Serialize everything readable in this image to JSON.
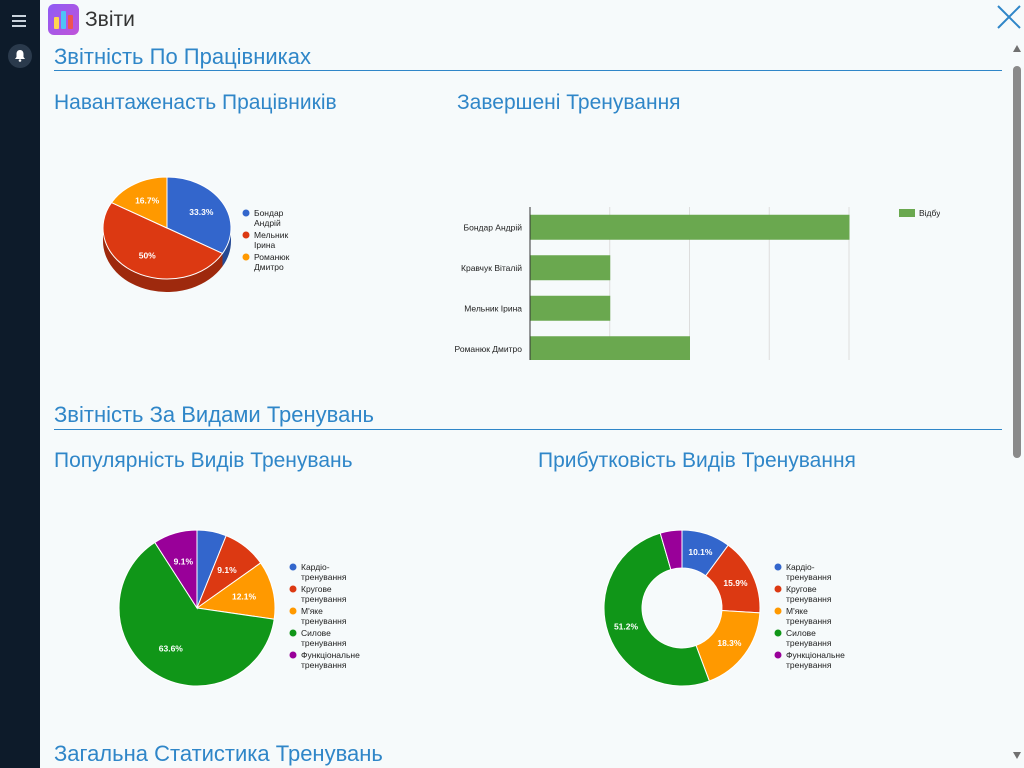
{
  "app": {
    "title": "Звіти"
  },
  "sections": {
    "employees": "Звітність По Працівниках",
    "training_types": "Звітність За Видами Тренувань",
    "general": "Загальна Статистика Тренувань"
  },
  "colors": {
    "blue": "#3366cc",
    "red": "#dc3912",
    "orange": "#ff9900",
    "green": "#109618",
    "purple": "#990099",
    "bar": "#6aa84f",
    "accent": "#2f86c8"
  },
  "chart_data": [
    {
      "id": "workload",
      "type": "pie",
      "title": "Навантаженасть Працівників",
      "labels": [
        "Бондар Андрій",
        "Мельник Ірина",
        "Романюк Дмитро"
      ],
      "values": [
        33.3,
        50,
        16.7
      ],
      "value_labels": [
        "33.3%",
        "50%",
        "16.7%"
      ],
      "colors": [
        "#3366cc",
        "#dc3912",
        "#ff9900"
      ],
      "is3D": true,
      "legend": "right"
    },
    {
      "id": "completed",
      "type": "bar",
      "orientation": "horizontal",
      "title": "Завершені Тренування",
      "categories": [
        "Бондар Андрій",
        "Кравчук Віталій",
        "Мельник Ірина",
        "Романюк Дмитро"
      ],
      "series": [
        {
          "name": "Відбувся",
          "values": [
            4,
            1,
            1,
            2
          ]
        }
      ],
      "xticks": [
        "0",
        "1",
        "2",
        "3",
        "4"
      ],
      "xlim": [
        0,
        4
      ],
      "legend": "top-right",
      "grid": true
    },
    {
      "id": "popularity",
      "type": "pie",
      "title": "Популярність Видів Тренувань",
      "labels": [
        "Кардіо-тренування",
        "Кругове тренування",
        "М'яке тренування",
        "Силове тренування",
        "Функціональне тренування"
      ],
      "values": [
        6.1,
        9.1,
        12.1,
        63.6,
        9.1
      ],
      "value_labels": [
        "",
        "9.1%",
        "12.1%",
        "63.6%",
        "9.1%"
      ],
      "colors": [
        "#3366cc",
        "#dc3912",
        "#ff9900",
        "#109618",
        "#990099"
      ],
      "legend": "right"
    },
    {
      "id": "profitability",
      "type": "pie",
      "donut": true,
      "title": "Прибутковість Видів Тренування",
      "labels": [
        "Кардіо-тренування",
        "Кругове тренування",
        "М'яке тренування",
        "Силове тренування",
        "Функціональне тренування"
      ],
      "values": [
        10.1,
        15.9,
        18.3,
        51.2,
        4.5
      ],
      "value_labels": [
        "10.1%",
        "15.9%",
        "18.3%",
        "51.2%",
        ""
      ],
      "colors": [
        "#3366cc",
        "#dc3912",
        "#ff9900",
        "#109618",
        "#990099"
      ],
      "legend": "right"
    }
  ]
}
